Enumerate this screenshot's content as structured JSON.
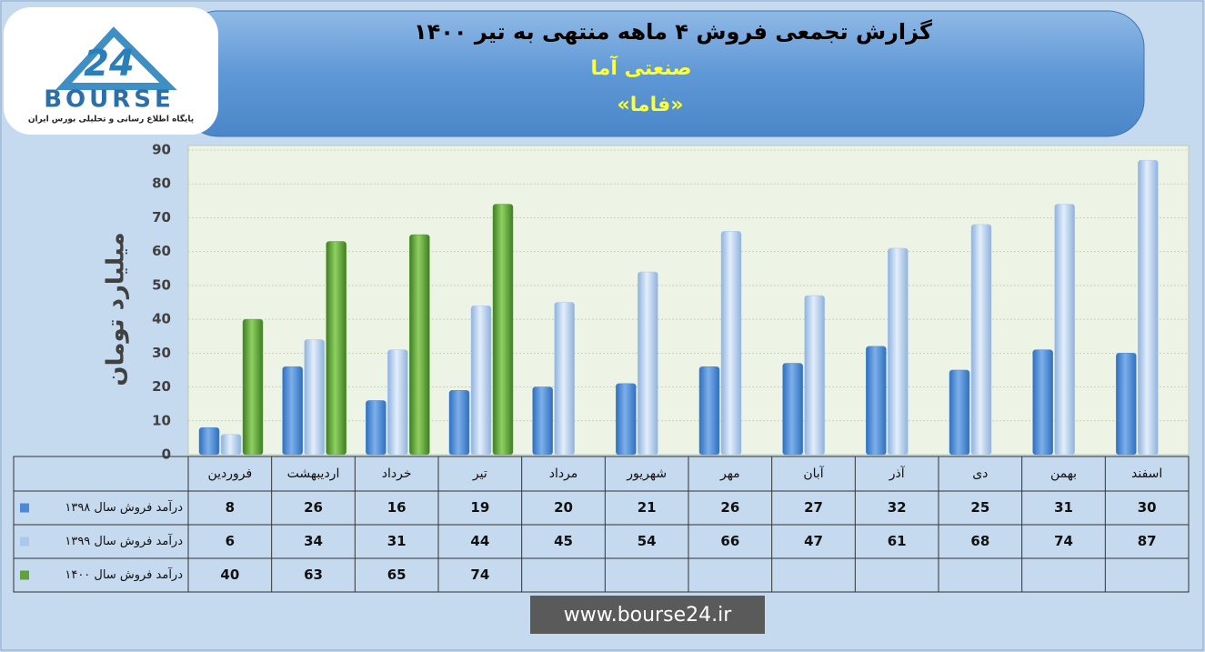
{
  "chart_data": {
    "type": "bar",
    "title": "گزارش تجمعی فروش ۴ ماهه منتهی به تیر ۱۴۰۰",
    "subtitle": "صنعتی آما",
    "symbol": "«فاما»",
    "y_label": "میلیارد تومان",
    "categories": [
      "فروردین",
      "اردیبهشت",
      "خرداد",
      "تیر",
      "مرداد",
      "شهریور",
      "مهر",
      "آبان",
      "آذر",
      "دی",
      "بهمن",
      "اسفند"
    ],
    "series": [
      {
        "name": "درآمد فروش سال ۱۳۹۸",
        "color": "#4a8ad4",
        "values": [
          8,
          26,
          16,
          19,
          20,
          21,
          26,
          27,
          32,
          25,
          31,
          30
        ]
      },
      {
        "name": "درآمد فروش سال ۱۳۹۹",
        "color": "#a9c8ee",
        "values": [
          6,
          34,
          31,
          44,
          45,
          54,
          66,
          47,
          61,
          68,
          74,
          87
        ]
      },
      {
        "name": "درآمد فروش سال ۱۴۰۰",
        "color": "#5fa13a",
        "values": [
          40,
          63,
          65,
          74,
          null,
          null,
          null,
          null,
          null,
          null,
          null,
          null
        ]
      }
    ],
    "ylim": [
      0,
      90
    ],
    "yticks": [
      0,
      10,
      20,
      30,
      40,
      50,
      60,
      70,
      80,
      90
    ],
    "grid": true,
    "logo": {
      "text": "BOURSE",
      "tagline": "پایگاه اطلاع رسانی و تحلیلی بورس ایران"
    },
    "watermark": "www.bourse24.ir"
  }
}
